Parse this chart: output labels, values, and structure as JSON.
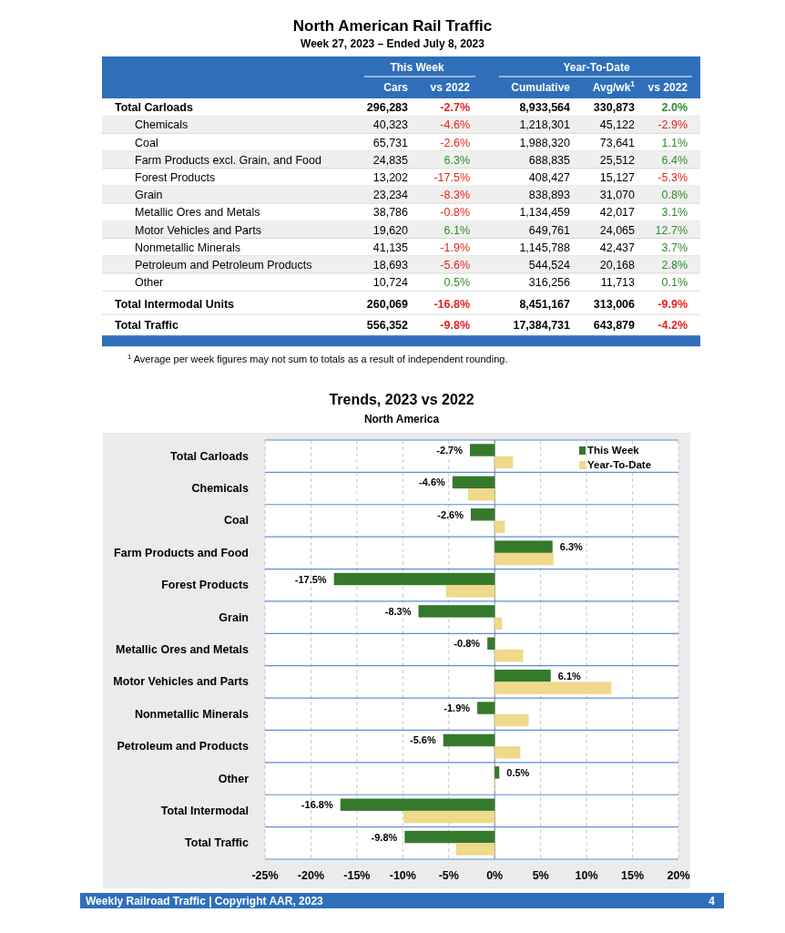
{
  "chart_data": [
    {
      "type": "other",
      "title": "North American Rail Traffic",
      "subtitle": "Week 27, 2023 – Ended July 8, 2023",
      "categories": [
        "Total Carloads",
        "Chemicals",
        "Coal",
        "Farm Products excl. Grain, and Food",
        "Forest Products",
        "Grain",
        "Metallic Ores and Metals",
        "Motor Vehicles and Parts",
        "Nonmetallic Minerals",
        "Petroleum and Petroleum Products",
        "Other",
        "Total Intermodal Units",
        "Total Traffic"
      ],
      "series": [
        {
          "name": "Cars",
          "values": [
            296283,
            40323,
            65731,
            24835,
            13202,
            23234,
            38786,
            19620,
            41135,
            18693,
            10724,
            260069,
            556352
          ],
          "value_labels": [
            "296,283",
            "40,323",
            "65,731",
            "24,835",
            "13,202",
            "23,234",
            "38,786",
            "19,620",
            "41,135",
            "18,693",
            "10,724",
            "260,069",
            "556,352"
          ]
        },
        {
          "name": "vs 2022",
          "values": [
            -2.7,
            -4.6,
            -2.6,
            6.3,
            -17.5,
            -8.3,
            -0.8,
            6.1,
            -1.9,
            -5.6,
            0.5,
            -16.8,
            -9.8
          ],
          "value_labels": [
            "-2.7%",
            "-4.6%",
            "-2.6%",
            "6.3%",
            "-17.5%",
            "-8.3%",
            "-0.8%",
            "6.1%",
            "-1.9%",
            "-5.6%",
            "0.5%",
            "-16.8%",
            "-9.8%"
          ]
        },
        {
          "name": "Cumulative",
          "values": [
            8933564,
            1218301,
            1988320,
            688835,
            408427,
            838893,
            1134459,
            649761,
            1145788,
            544524,
            316256,
            8451167,
            17384731
          ],
          "value_labels": [
            "8,933,564",
            "1,218,301",
            "1,988,320",
            "688,835",
            "408,427",
            "838,893",
            "1,134,459",
            "649,761",
            "1,145,788",
            "544,524",
            "316,256",
            "8,451,167",
            "17,384,731"
          ]
        },
        {
          "name": "Avg/wk$^{1}$",
          "values": [
            330873,
            45122,
            73641,
            25512,
            15127,
            31070,
            42017,
            24065,
            42437,
            20168,
            11713,
            313006,
            643879
          ],
          "value_labels": [
            "330,873",
            "45,122",
            "73,641",
            "25,512",
            "15,127",
            "31,070",
            "42,017",
            "24,065",
            "42,437",
            "20,168",
            "11,713",
            "313,006",
            "643,879"
          ]
        },
        {
          "name": "vs 2022",
          "values": [
            2.0,
            -2.9,
            1.1,
            6.4,
            -5.3,
            0.8,
            3.1,
            12.7,
            3.7,
            2.8,
            0.1,
            -9.9,
            -4.2
          ],
          "value_labels": [
            "2.0%",
            "-2.9%",
            "1.1%",
            "6.4%",
            "-5.3%",
            "0.8%",
            "3.1%",
            "12.7%",
            "3.7%",
            "2.8%",
            "0.1%",
            "-9.9%",
            "-4.2%"
          ]
        }
      ],
      "annotations": [
        "This Week",
        "Year-To-Date",
        "$^{1}$ Average per week figures may not sum to totals as a result of independent rounding."
      ]
    },
    {
      "type": "bar",
      "orientation": "horizontal",
      "title": "Trends, 2023 vs 2022",
      "subtitle": "North America",
      "categories": [
        "Total Carloads",
        "Chemicals",
        "Coal",
        "Farm Products and Food",
        "Forest Products",
        "Grain",
        "Metallic Ores and Metals",
        "Motor Vehicles and Parts",
        "Nonmetallic Minerals",
        "Petroleum and Products",
        "Other",
        "Total Intermodal",
        "Total Traffic"
      ],
      "series": [
        {
          "name": "This Week",
          "color": "#357a2c",
          "values": [
            -2.7,
            -4.6,
            -2.6,
            6.3,
            -17.5,
            -8.3,
            -0.8,
            6.1,
            -1.9,
            -5.6,
            0.5,
            -16.8,
            -9.8
          ],
          "value_labels": [
            "-2.7%",
            "-4.6%",
            "-2.6%",
            "6.3%",
            "-17.5%",
            "-8.3%",
            "-0.8%",
            "6.1%",
            "-1.9%",
            "-5.6%",
            "0.5%",
            "-16.8%",
            "-9.8%"
          ]
        },
        {
          "name": "Year-To-Date",
          "color": "#efd98a",
          "values": [
            2.0,
            -2.9,
            1.1,
            6.4,
            -5.3,
            0.8,
            3.1,
            12.7,
            3.7,
            2.8,
            0.1,
            -9.9,
            -4.2
          ]
        }
      ],
      "xlim": [
        -25,
        20
      ],
      "xticks": [
        {
          "value": -25,
          "label": "-25%"
        },
        {
          "value": -20,
          "label": "-20%"
        },
        {
          "value": -15,
          "label": "-15%"
        },
        {
          "value": -10,
          "label": "-10%"
        },
        {
          "value": -5,
          "label": "-5%"
        },
        {
          "value": 0,
          "label": "0%"
        },
        {
          "value": 5,
          "label": "5%"
        },
        {
          "value": 10,
          "label": "10%"
        },
        {
          "value": 15,
          "label": "15%"
        },
        {
          "value": 20,
          "label": "20%"
        }
      ],
      "grid": "x",
      "legend": "top right",
      "annotations": [
        "Weekly Railroad Traffic | Copyright AAR, 2023",
        "4"
      ]
    }
  ]
}
